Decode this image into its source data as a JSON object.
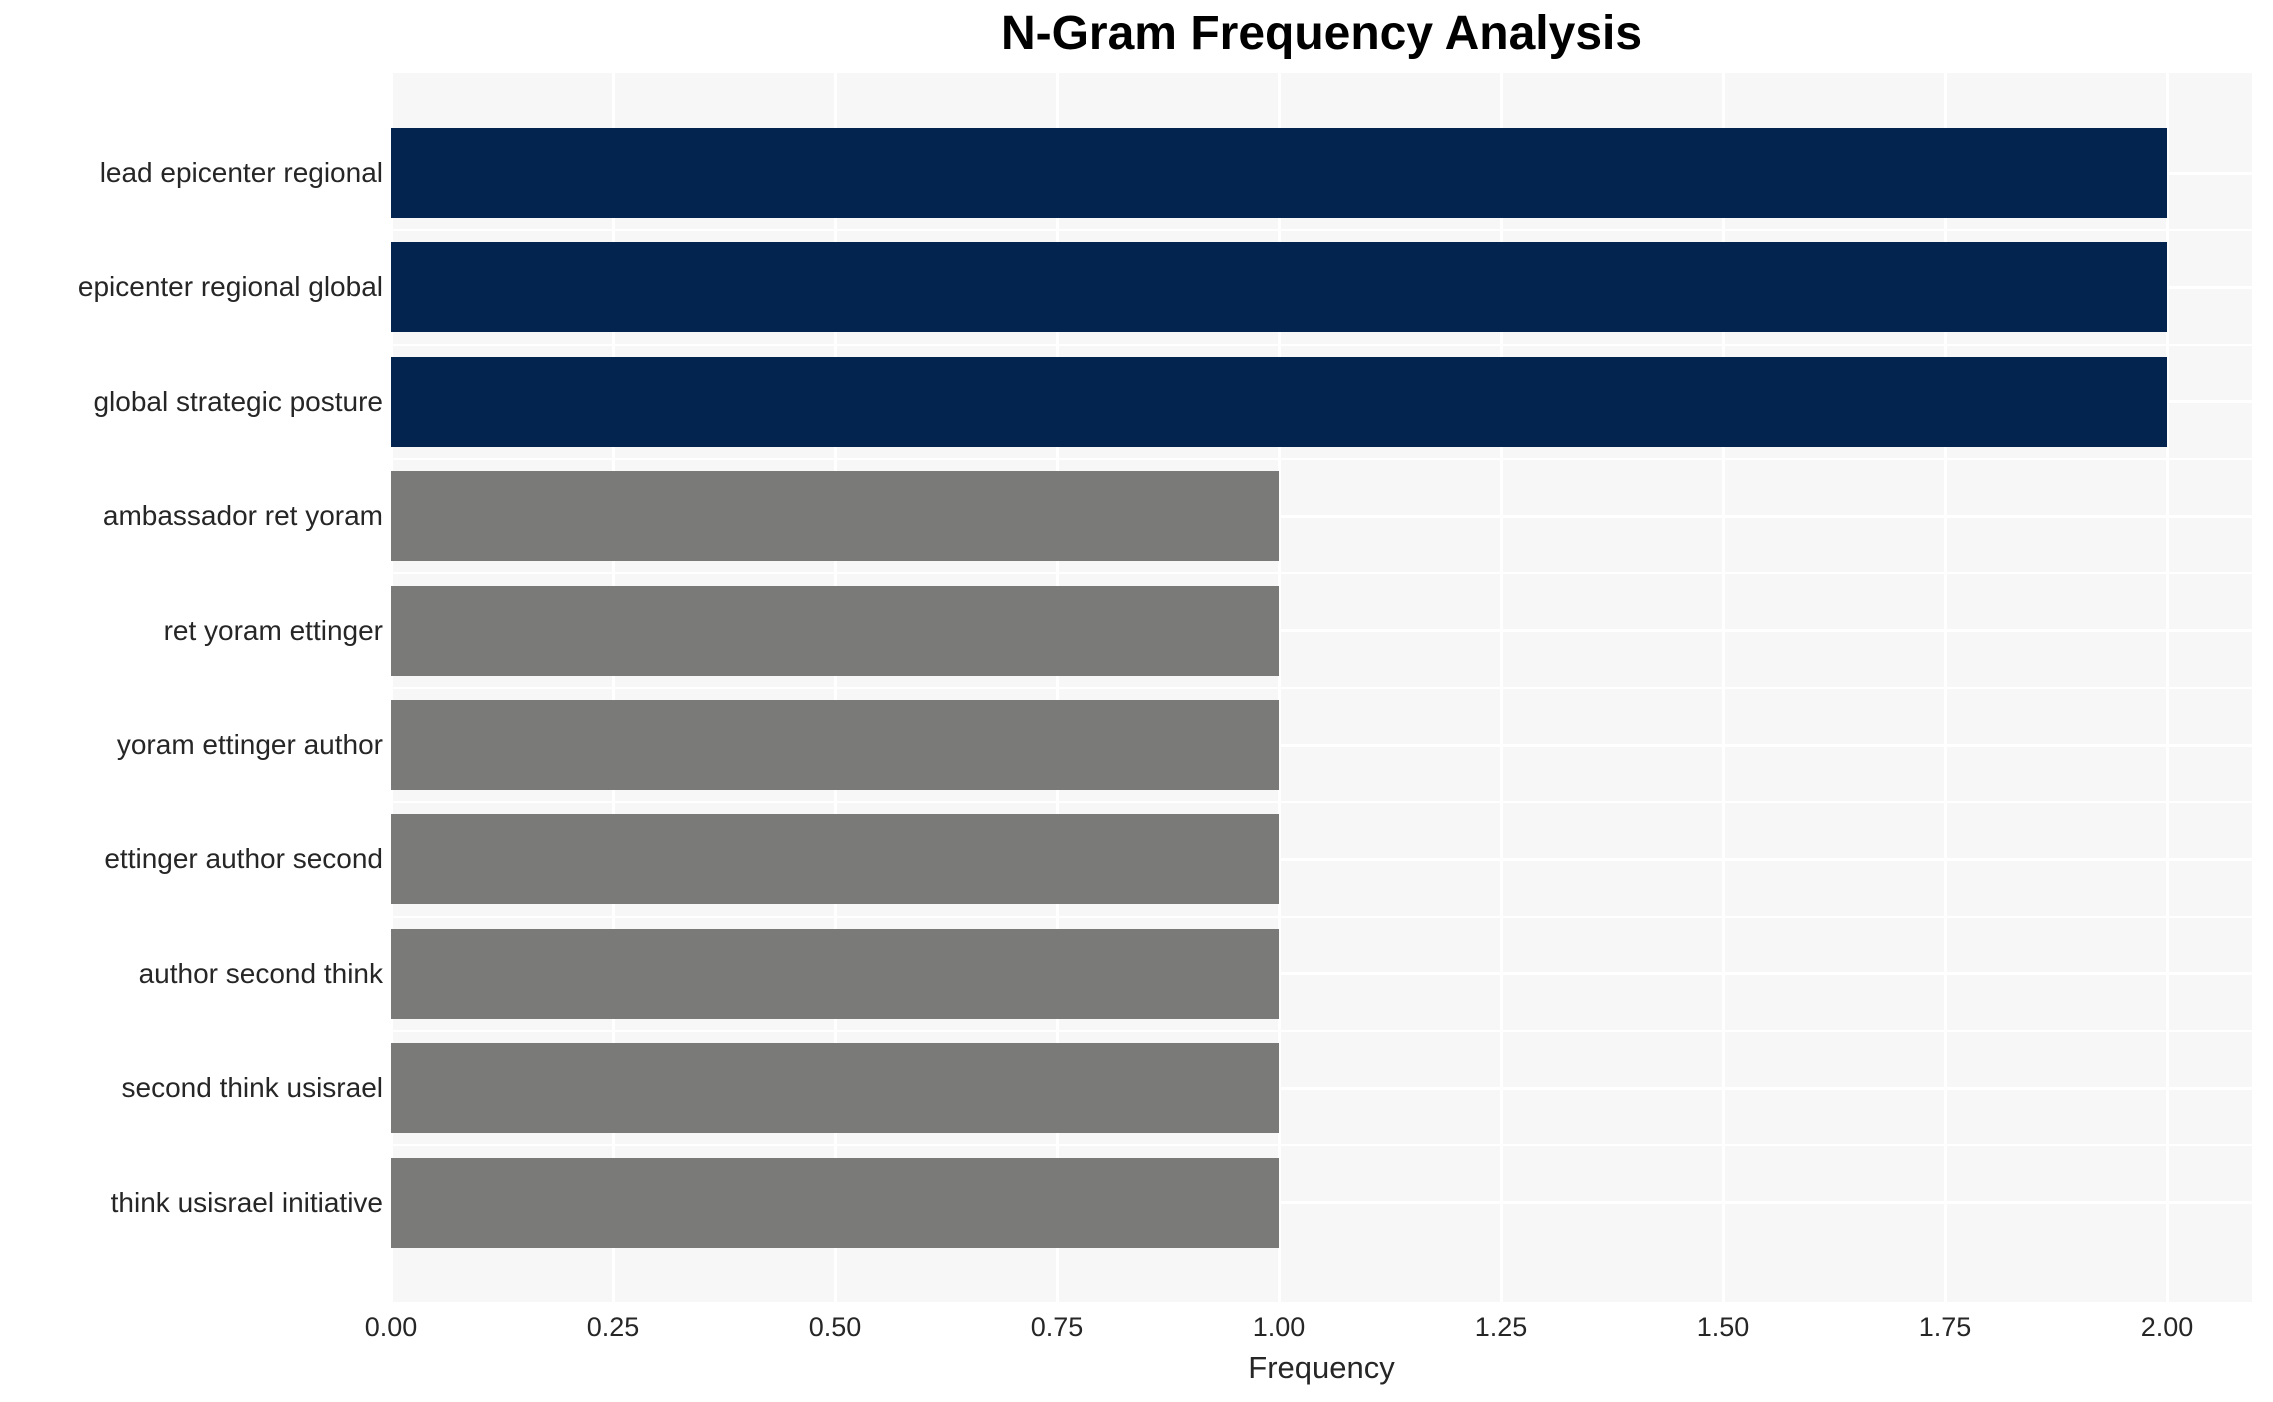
{
  "title": "N-Gram Frequency Analysis",
  "chart_data": {
    "type": "bar",
    "orientation": "horizontal",
    "title": "N-Gram Frequency Analysis",
    "xlabel": "Frequency",
    "ylabel": "",
    "categories": [
      "lead epicenter regional",
      "epicenter regional global",
      "global strategic posture",
      "ambassador ret yoram",
      "ret yoram ettinger",
      "yoram ettinger author",
      "ettinger author second",
      "author second think",
      "second think usisrael",
      "think usisrael initiative"
    ],
    "values": [
      2,
      2,
      2,
      1,
      1,
      1,
      1,
      1,
      1,
      1
    ],
    "bar_colors": [
      "#02244E",
      "#02244E",
      "#02244E",
      "#7A7A78",
      "#7A7A78",
      "#7A7A78",
      "#7A7A78",
      "#7A7A78",
      "#7A7A78",
      "#7A7A78"
    ],
    "xticks": [
      0,
      0.25,
      0.5,
      0.75,
      1.0,
      1.25,
      1.5,
      1.75,
      2.0
    ],
    "xtick_labels": [
      "0.00",
      "0.25",
      "0.50",
      "0.75",
      "1.00",
      "1.25",
      "1.50",
      "1.75",
      "2.00"
    ],
    "xlim": [
      0,
      2.095
    ],
    "grid": "on",
    "legend": "none",
    "colors": {
      "highlight_bar": "#02244E",
      "default_bar": "#7A7A78",
      "panel_background": "#F7F7F7",
      "gridline": "#FFFFFF",
      "axis_text": "#262626",
      "title_text": "#000000"
    }
  }
}
